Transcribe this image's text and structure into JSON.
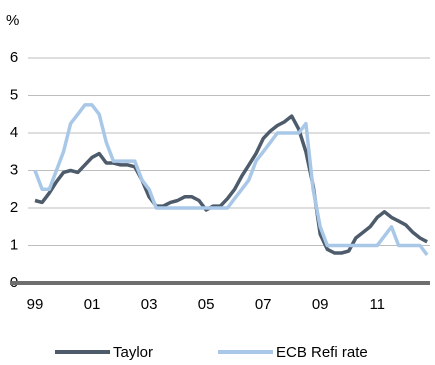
{
  "chart_data": {
    "type": "line",
    "y_unit_label": "%",
    "x": [
      1999.0,
      1999.25,
      1999.5,
      1999.75,
      2000.0,
      2000.25,
      2000.5,
      2000.75,
      2001.0,
      2001.25,
      2001.5,
      2001.75,
      2002.0,
      2002.25,
      2002.5,
      2002.75,
      2003.0,
      2003.25,
      2003.5,
      2003.75,
      2004.0,
      2004.25,
      2004.5,
      2004.75,
      2005.0,
      2005.25,
      2005.5,
      2005.75,
      2006.0,
      2006.25,
      2006.5,
      2006.75,
      2007.0,
      2007.25,
      2007.5,
      2007.75,
      2008.0,
      2008.25,
      2008.5,
      2008.75,
      2009.0,
      2009.25,
      2009.5,
      2009.75,
      2010.0,
      2010.25,
      2010.5,
      2010.75,
      2011.0,
      2011.25,
      2011.5,
      2011.75,
      2012.0,
      2012.25,
      2012.5,
      2012.75
    ],
    "series": [
      {
        "name": "Taylor",
        "color": "#4d5b6b",
        "values": [
          2.2,
          2.15,
          2.4,
          2.7,
          2.95,
          3.0,
          2.95,
          3.15,
          3.35,
          3.45,
          3.2,
          3.2,
          3.15,
          3.15,
          3.1,
          2.75,
          2.3,
          2.05,
          2.05,
          2.15,
          2.2,
          2.3,
          2.3,
          2.2,
          1.95,
          2.05,
          2.05,
          2.25,
          2.5,
          2.85,
          3.15,
          3.45,
          3.85,
          4.05,
          4.2,
          4.3,
          4.45,
          4.1,
          3.5,
          2.6,
          1.3,
          0.9,
          0.8,
          0.8,
          0.85,
          1.2,
          1.35,
          1.5,
          1.75,
          1.9,
          1.75,
          1.65,
          1.55,
          1.35,
          1.2,
          1.1
        ]
      },
      {
        "name": "ECB Refi rate",
        "color": "#a9c8e8",
        "values": [
          3.0,
          2.5,
          2.5,
          3.0,
          3.5,
          4.25,
          4.5,
          4.75,
          4.75,
          4.5,
          3.75,
          3.25,
          3.25,
          3.25,
          3.25,
          2.75,
          2.5,
          2.0,
          2.0,
          2.0,
          2.0,
          2.0,
          2.0,
          2.0,
          2.0,
          2.0,
          2.0,
          2.0,
          2.25,
          2.5,
          2.75,
          3.25,
          3.5,
          3.75,
          4.0,
          4.0,
          4.0,
          4.0,
          4.25,
          2.5,
          1.5,
          1.0,
          1.0,
          1.0,
          1.0,
          1.0,
          1.0,
          1.0,
          1.0,
          1.25,
          1.5,
          1.0,
          1.0,
          1.0,
          1.0,
          0.75
        ]
      }
    ],
    "xlim": [
      1999,
      2012.85
    ],
    "xticks": [
      {
        "value": 1999,
        "label": "99"
      },
      {
        "value": 2001,
        "label": "01"
      },
      {
        "value": 2003,
        "label": "03"
      },
      {
        "value": 2005,
        "label": "05"
      },
      {
        "value": 2007,
        "label": "07"
      },
      {
        "value": 2009,
        "label": "09"
      },
      {
        "value": 2011,
        "label": "11"
      }
    ],
    "ylim": [
      0,
      6
    ],
    "yticks": [
      0,
      1,
      2,
      3,
      4,
      5,
      6
    ],
    "grid": true
  }
}
